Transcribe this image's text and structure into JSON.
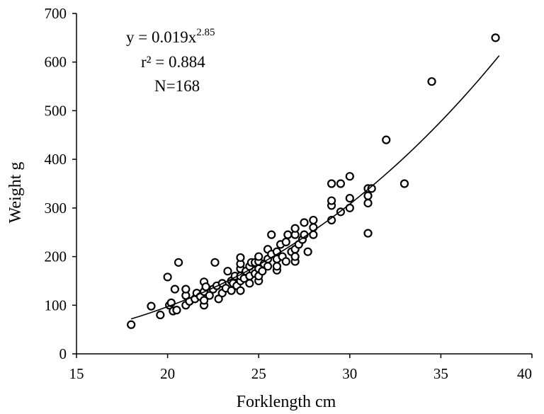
{
  "chart_data": {
    "type": "scatter",
    "xlabel": "Forklength cm",
    "ylabel": "Weight g",
    "xlim": [
      15,
      40
    ],
    "ylim": [
      0,
      700
    ],
    "xticks": [
      "15",
      "20",
      "25",
      "30",
      "35",
      "40"
    ],
    "yticks": [
      "0",
      "100",
      "200",
      "300",
      "400",
      "500",
      "600",
      "700"
    ],
    "grid": false,
    "legend": "none",
    "annotation": {
      "equation_prefix": "y = 0.019x",
      "equation_exponent": "2.85",
      "r2": "r² = 0.884",
      "n": "N=168"
    },
    "fit": {
      "type": "power",
      "a": 0.019,
      "b": 2.85,
      "x_range": [
        18,
        38.2
      ]
    },
    "marker": {
      "shape": "open-circle",
      "stroke": "#000000",
      "fill": "#ffffff"
    },
    "points": [
      [
        18.0,
        60
      ],
      [
        19.1,
        98
      ],
      [
        19.6,
        80
      ],
      [
        20.0,
        158
      ],
      [
        20.1,
        100
      ],
      [
        20.2,
        105
      ],
      [
        20.3,
        88
      ],
      [
        20.4,
        133
      ],
      [
        20.5,
        90
      ],
      [
        20.6,
        188
      ],
      [
        21.0,
        100
      ],
      [
        21.0,
        120
      ],
      [
        21.0,
        133
      ],
      [
        21.2,
        108
      ],
      [
        21.5,
        113
      ],
      [
        21.6,
        125
      ],
      [
        21.8,
        118
      ],
      [
        22.0,
        100
      ],
      [
        22.0,
        110
      ],
      [
        22.0,
        128
      ],
      [
        22.0,
        148
      ],
      [
        22.1,
        138
      ],
      [
        22.3,
        120
      ],
      [
        22.5,
        133
      ],
      [
        22.6,
        188
      ],
      [
        22.7,
        140
      ],
      [
        22.8,
        113
      ],
      [
        23.0,
        125
      ],
      [
        23.0,
        145
      ],
      [
        23.2,
        135
      ],
      [
        23.3,
        170
      ],
      [
        23.5,
        130
      ],
      [
        23.5,
        150
      ],
      [
        23.6,
        145
      ],
      [
        23.7,
        160
      ],
      [
        23.8,
        140
      ],
      [
        24.0,
        130
      ],
      [
        24.0,
        150
      ],
      [
        24.0,
        160
      ],
      [
        24.0,
        175
      ],
      [
        24.0,
        185
      ],
      [
        24.0,
        198
      ],
      [
        24.2,
        155
      ],
      [
        24.3,
        170
      ],
      [
        24.5,
        145
      ],
      [
        24.5,
        160
      ],
      [
        24.5,
        180
      ],
      [
        24.6,
        188
      ],
      [
        24.8,
        165
      ],
      [
        24.8,
        188
      ],
      [
        25.0,
        150
      ],
      [
        25.0,
        160
      ],
      [
        25.0,
        175
      ],
      [
        25.0,
        190
      ],
      [
        25.0,
        200
      ],
      [
        25.2,
        170
      ],
      [
        25.3,
        185
      ],
      [
        25.5,
        180
      ],
      [
        25.5,
        195
      ],
      [
        25.5,
        215
      ],
      [
        25.7,
        205
      ],
      [
        25.7,
        245
      ],
      [
        26.0,
        172
      ],
      [
        26.0,
        180
      ],
      [
        26.0,
        195
      ],
      [
        26.0,
        210
      ],
      [
        26.2,
        225
      ],
      [
        26.3,
        200
      ],
      [
        26.5,
        190
      ],
      [
        26.5,
        230
      ],
      [
        26.6,
        245
      ],
      [
        26.8,
        210
      ],
      [
        27.0,
        190
      ],
      [
        27.0,
        200
      ],
      [
        27.0,
        215
      ],
      [
        27.0,
        245
      ],
      [
        27.0,
        258
      ],
      [
        27.2,
        225
      ],
      [
        27.4,
        235
      ],
      [
        27.5,
        245
      ],
      [
        27.5,
        270
      ],
      [
        27.7,
        210
      ],
      [
        28.0,
        245
      ],
      [
        28.0,
        260
      ],
      [
        28.0,
        275
      ],
      [
        29.0,
        275
      ],
      [
        29.0,
        305
      ],
      [
        29.0,
        315
      ],
      [
        29.0,
        350
      ],
      [
        29.5,
        292
      ],
      [
        29.5,
        350
      ],
      [
        30.0,
        300
      ],
      [
        30.0,
        320
      ],
      [
        30.0,
        365
      ],
      [
        31.0,
        248
      ],
      [
        31.0,
        310
      ],
      [
        31.0,
        325
      ],
      [
        31.0,
        340
      ],
      [
        31.2,
        340
      ],
      [
        32.0,
        440
      ],
      [
        33.0,
        350
      ],
      [
        34.5,
        560
      ],
      [
        38.0,
        650
      ]
    ]
  }
}
